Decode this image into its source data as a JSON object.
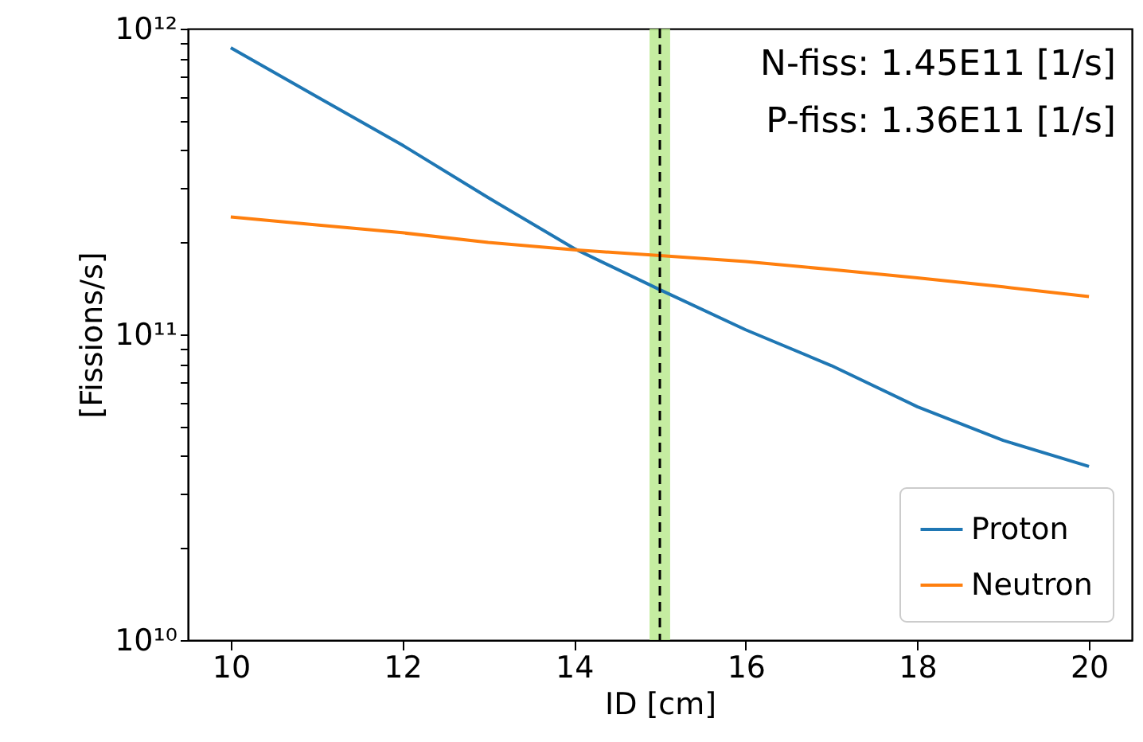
{
  "chart_data": {
    "type": "line",
    "xlabel": "ID [cm]",
    "ylabel": "[Fissions/s]",
    "x": [
      10,
      11,
      12,
      13,
      14,
      15,
      16,
      17,
      18,
      19,
      20
    ],
    "series": [
      {
        "name": "Proton",
        "color": "#1f77b4",
        "values": [
          866000000000.0,
          600000000000.0,
          416000000000.0,
          280000000000.0,
          191000000000.0,
          140000000000.0,
          103500000000.0,
          79000000000.0,
          58000000000.0,
          45000000000.0,
          37000000000.0
        ]
      },
      {
        "name": "Neutron",
        "color": "#ff7f0e",
        "values": [
          242000000000.0,
          228000000000.0,
          215000000000.0,
          200000000000.0,
          189000000000.0,
          181000000000.0,
          173000000000.0,
          163000000000.0,
          153000000000.0,
          143000000000.0,
          133000000000.0
        ]
      }
    ],
    "log": "y",
    "xlim": [
      9.5,
      20.5
    ],
    "xticks": [
      10,
      12,
      14,
      16,
      18,
      20
    ],
    "ylim": [
      10000000000.0,
      1000000000000.0
    ],
    "yticks": [
      {
        "value": 10000000000.0,
        "label": "10¹⁰"
      },
      {
        "value": 20000000000.0,
        "label": null
      },
      {
        "value": 30000000000.0,
        "label": null
      },
      {
        "value": 40000000000.0,
        "label": null
      },
      {
        "value": 50000000000.0,
        "label": null
      },
      {
        "value": 60000000000.0,
        "label": null
      },
      {
        "value": 70000000000.0,
        "label": null
      },
      {
        "value": 80000000000.0,
        "label": null
      },
      {
        "value": 90000000000.0,
        "label": null
      },
      {
        "value": 100000000000.0,
        "label": "10¹¹"
      },
      {
        "value": 200000000000.0,
        "label": null
      },
      {
        "value": 300000000000.0,
        "label": null
      },
      {
        "value": 400000000000.0,
        "label": null
      },
      {
        "value": 500000000000.0,
        "label": null
      },
      {
        "value": 600000000000.0,
        "label": null
      },
      {
        "value": 700000000000.0,
        "label": null
      },
      {
        "value": 800000000000.0,
        "label": null
      },
      {
        "value": 900000000000.0,
        "label": null
      },
      {
        "value": 1000000000000.0,
        "label": "10¹²"
      }
    ],
    "ref_lines": [
      {
        "axis": "x",
        "value": 15,
        "color": "#000000",
        "line_style": "dashed"
      }
    ],
    "bands": [
      {
        "axis": "x",
        "from": 14.88,
        "to": 15.12,
        "color": "#b7e88a"
      }
    ],
    "annotations": [
      "N-fiss: 1.45E11 [1/s]",
      "P-fiss: 1.36E11 [1/s]"
    ],
    "legend": "bottom right",
    "grid": false,
    "marker": "none",
    "line_style": "solid"
  }
}
